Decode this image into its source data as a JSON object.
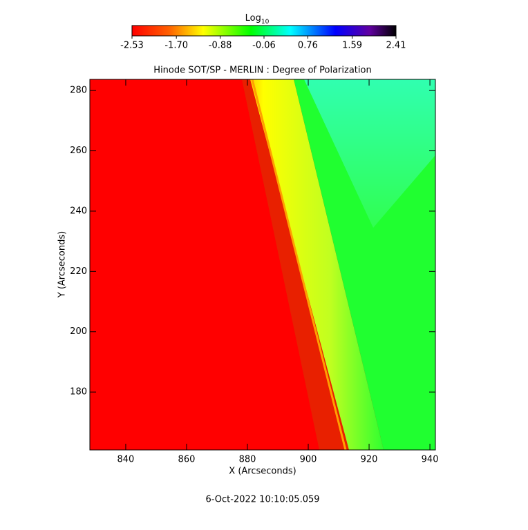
{
  "chart_data": {
    "type": "image",
    "title": "Hinode SOT/SP - MERLIN : Degree of Polarization",
    "xlabel": "X (Arcseconds)",
    "ylabel": "Y (Arcseconds)",
    "xlim": [
      828.2,
      941.8
    ],
    "ylim": [
      160.8,
      283.7
    ],
    "xticks": [
      840,
      860,
      880,
      900,
      920,
      940
    ],
    "yticks": [
      180,
      200,
      220,
      240,
      260,
      280
    ],
    "colorbar": {
      "label": "Log",
      "label_subscript": "10",
      "clim": [
        -2.53,
        2.41
      ],
      "ticks": [
        -2.53,
        {
          "value": -1.7,
          "label": "-1.70"
        },
        -0.88,
        -0.06,
        0.76,
        1.59,
        2.41
      ]
    },
    "footer": "6-Oct-2022 10:10:05.059"
  }
}
